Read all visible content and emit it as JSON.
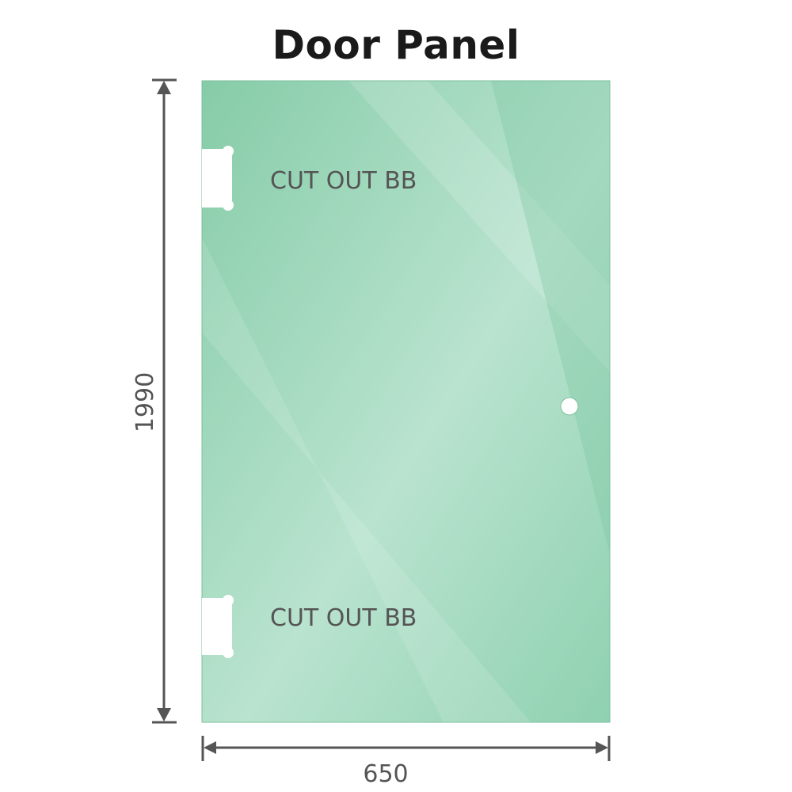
{
  "title": "Door Panel",
  "dimensions": {
    "height": "1990",
    "width": "650"
  },
  "cutouts": [
    {
      "label": "CUT OUT BB"
    },
    {
      "label": "CUT OUT BB"
    }
  ],
  "colors": {
    "glass": "#8fd1b0",
    "glass_light": "#b9e3cf",
    "dimension_line": "#555555",
    "label": "#555555"
  }
}
